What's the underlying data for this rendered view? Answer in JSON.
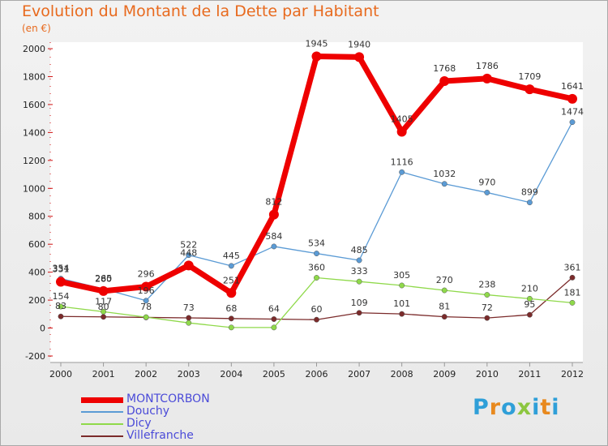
{
  "title": "Evolution du Montant de la Dette par Habitant",
  "subtitle": "(en €)",
  "logo": {
    "letters": [
      "P",
      "r",
      "o",
      "x",
      "i",
      "t",
      "i"
    ],
    "colors": [
      "#2f9fd8",
      "#e8891e",
      "#2f9fd8",
      "#8cc63f",
      "#2f9fd8",
      "#e8891e",
      "#2f9fd8"
    ]
  },
  "chart_data": {
    "type": "line",
    "x": [
      2000,
      2001,
      2002,
      2003,
      2004,
      2005,
      2006,
      2007,
      2008,
      2009,
      2010,
      2011,
      2012
    ],
    "ylim": [
      -200,
      2000
    ],
    "yticks": [
      -200,
      0,
      200,
      400,
      600,
      800,
      1000,
      1200,
      1400,
      1600,
      1800,
      2000
    ],
    "grid": false,
    "legend": "bottom-left",
    "series": [
      {
        "name": "MONTCORBON",
        "color": "#ee0000",
        "values": [
          331,
          265,
          296,
          448,
          251,
          812,
          1945,
          1940,
          1405,
          1768,
          1786,
          1709,
          1641
        ]
      },
      {
        "name": "Douchy",
        "color": "#5b9bd5",
        "values": [
          354,
          280,
          196,
          522,
          445,
          584,
          534,
          485,
          1116,
          1032,
          970,
          899,
          1474
        ]
      },
      {
        "name": "Dicy",
        "color": "#8fd94a",
        "values": [
          154,
          117,
          78,
          37,
          4,
          4,
          360,
          333,
          305,
          270,
          238,
          210,
          181
        ]
      },
      {
        "name": "Villefranche",
        "color": "#7b2b2b",
        "values": [
          83,
          80,
          76,
          73,
          68,
          64,
          60,
          109,
          101,
          81,
          72,
          95,
          361
        ]
      }
    ],
    "labels": {
      "MONTCORBON": [
        "331",
        "265",
        "296",
        "448",
        "251",
        "812",
        "1945",
        "1940",
        "1405",
        "1768",
        "1786",
        "1709",
        "1641"
      ],
      "Douchy": [
        "354",
        "280",
        "196",
        "522",
        "445",
        "584",
        "534",
        "485",
        "1116",
        "1032",
        "970",
        "899",
        "1474"
      ],
      "Dicy": [
        "154",
        "117",
        "78",
        "",
        "",
        "",
        "360",
        "333",
        "305",
        "270",
        "238",
        "210",
        "181"
      ],
      "Villefranche": [
        "83",
        "80",
        "",
        "73",
        "68",
        "64",
        "60",
        "109",
        "101",
        "81",
        "72",
        "95",
        "361"
      ]
    }
  }
}
